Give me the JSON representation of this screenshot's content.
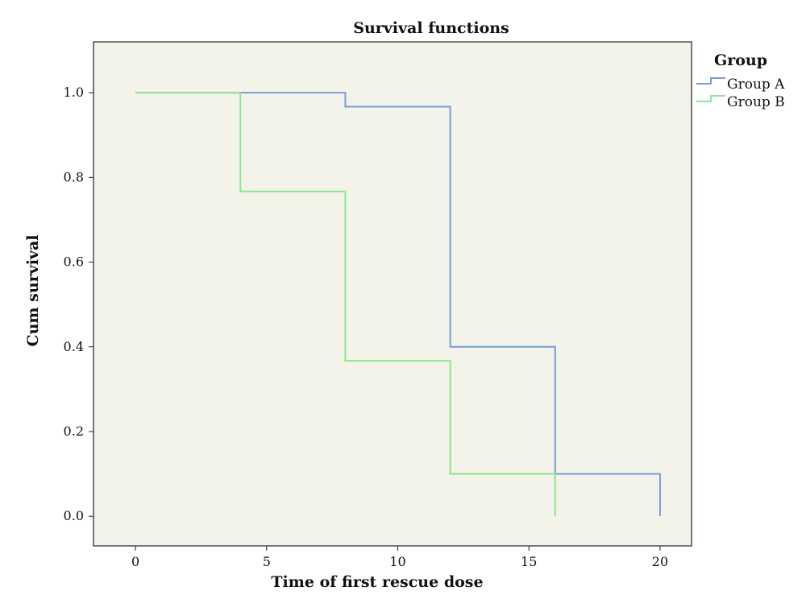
{
  "chart_data": {
    "type": "line",
    "title": "Survival functions",
    "xlabel": "Time of first rescue dose",
    "ylabel": "Cum survival",
    "xlim": [
      -1.6,
      21.2
    ],
    "ylim": [
      -0.07,
      1.12
    ],
    "xticks": [
      0,
      5,
      10,
      15,
      20
    ],
    "xtick_labels": [
      "0",
      "5",
      "10",
      "15",
      "20"
    ],
    "yticks": [
      0,
      0.2,
      0.4,
      0.6,
      0.8,
      1.0
    ],
    "ytick_labels": [
      "0.0",
      "0.2",
      "0.4",
      "0.6",
      "0.8",
      "1.0"
    ],
    "grid": false,
    "legend": {
      "title": "Group",
      "placement": "outside-right-top"
    },
    "series": [
      {
        "name": "Group A",
        "color": "#7b9bd6",
        "step": true,
        "x": [
          0,
          8,
          12,
          16,
          20,
          20
        ],
        "y": [
          1.0,
          0.967,
          0.4,
          0.1,
          0.1,
          0.0
        ]
      },
      {
        "name": "Group B",
        "color": "#8ee68a",
        "step": true,
        "x": [
          0,
          4,
          8,
          12,
          16,
          16
        ],
        "y": [
          1.0,
          0.767,
          0.367,
          0.1,
          0.1,
          0.0
        ]
      }
    ]
  }
}
